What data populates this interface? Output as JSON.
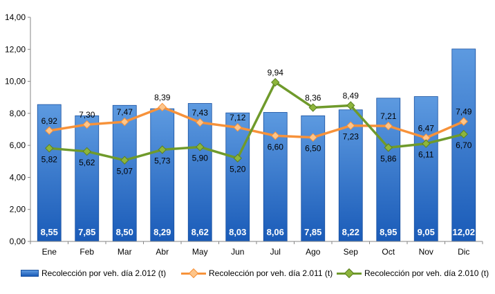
{
  "colors": {
    "bar_top": "#5d9ae0",
    "bar_bottom": "#1a5bb8",
    "bar_edge": "#174f9f",
    "s2011": "#f7923a",
    "s2011_marker": "#fdc58a",
    "s2010": "#6f9a2b",
    "s2010_marker": "#8db53c",
    "axis": "#868686"
  },
  "chart_data": {
    "type": "bar",
    "categories": [
      "Ene",
      "Feb",
      "Mar",
      "Abr",
      "May",
      "Jun",
      "Jul",
      "Ago",
      "Sep",
      "Oct",
      "Nov",
      "Dic"
    ],
    "ylim": [
      0,
      14
    ],
    "yticks": [
      "0,00",
      "2,00",
      "4,00",
      "6,00",
      "8,00",
      "10,00",
      "12,00",
      "14,00"
    ],
    "grid": false,
    "legend_position": "bottom",
    "series": [
      {
        "name": "Recolección por veh. día 2.012 (t)",
        "kind": "bar",
        "values": [
          8.55,
          7.85,
          8.5,
          8.29,
          8.62,
          8.03,
          8.06,
          7.85,
          8.22,
          8.95,
          9.05,
          12.02
        ],
        "labels": [
          "8,55",
          "7,85",
          "8,50",
          "8,29",
          "8,62",
          "8,03",
          "8,06",
          "7,85",
          "8,22",
          "8,95",
          "9,05",
          "12,02"
        ]
      },
      {
        "name": "Recolección por veh. día 2.011 (t)",
        "kind": "line",
        "values": [
          6.92,
          7.3,
          7.47,
          8.39,
          7.43,
          7.12,
          6.6,
          6.5,
          7.23,
          7.21,
          6.47,
          7.49
        ],
        "labels": [
          "6,92",
          "7,30",
          "7,47",
          "8,39",
          "7,43",
          "7,12",
          "6,60",
          "6,50",
          "7,23",
          "7,21",
          "6,47",
          "7,49"
        ]
      },
      {
        "name": "Recolección por veh. día 2.010 (t)",
        "kind": "line",
        "values": [
          5.82,
          5.62,
          5.07,
          5.73,
          5.9,
          5.2,
          9.94,
          8.36,
          8.49,
          5.86,
          6.11,
          6.7
        ],
        "labels": [
          "5,82",
          "5,62",
          "5,07",
          "5,73",
          "5,90",
          "5,20",
          "9,94",
          "8,36",
          "8,49",
          "5,86",
          "6,11",
          "6,70"
        ]
      }
    ]
  },
  "legend": {
    "item1": "Recolección por veh. día 2.012 (t)",
    "item2": "Recolección por veh. día 2.011 (t)",
    "item3": "Recolección por veh. día 2.010 (t)"
  }
}
